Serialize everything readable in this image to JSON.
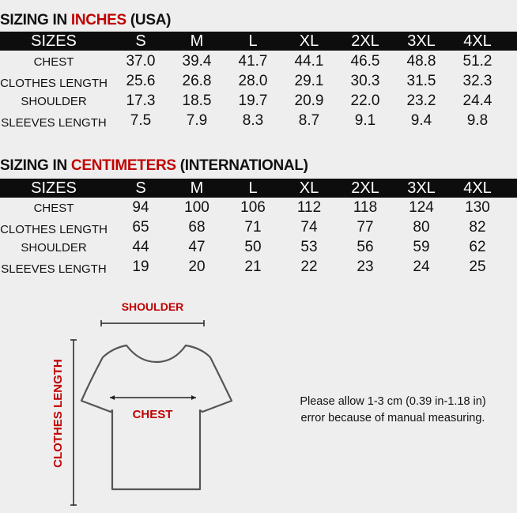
{
  "sizes": [
    "S",
    "M",
    "L",
    "XL",
    "2XL",
    "3XL",
    "4XL"
  ],
  "inches": {
    "title_prefix": "SIZING IN ",
    "title_highlight": "INCHES",
    "title_suffix": " (USA)",
    "header_label": "SIZES",
    "rows": [
      {
        "label": "CHEST",
        "values": [
          "37.0",
          "39.4",
          "41.7",
          "44.1",
          "46.5",
          "48.8",
          "51.2"
        ]
      },
      {
        "label": "CLOTHES LENGTH",
        "values": [
          "25.6",
          "26.8",
          "28.0",
          "29.1",
          "30.3",
          "31.5",
          "32.3"
        ]
      },
      {
        "label": "SHOULDER",
        "values": [
          "17.3",
          "18.5",
          "19.7",
          "20.9",
          "22.0",
          "23.2",
          "24.4"
        ]
      },
      {
        "label": "SLEEVES LENGTH",
        "values": [
          "7.5",
          "7.9",
          "8.3",
          "8.7",
          "9.1",
          "9.4",
          "9.8"
        ]
      }
    ]
  },
  "centimeters": {
    "title_prefix": "SIZING IN ",
    "title_highlight": "CENTIMETERS",
    "title_suffix": " (INTERNATIONAL)",
    "header_label": "SIZES",
    "rows": [
      {
        "label": "CHEST",
        "values": [
          "94",
          "100",
          "106",
          "112",
          "118",
          "124",
          "130"
        ]
      },
      {
        "label": "CLOTHES LENGTH",
        "values": [
          "65",
          "68",
          "71",
          "74",
          "77",
          "80",
          "82"
        ]
      },
      {
        "label": "SHOULDER",
        "values": [
          "44",
          "47",
          "50",
          "53",
          "56",
          "59",
          "62"
        ]
      },
      {
        "label": "SLEEVES LENGTH",
        "values": [
          "19",
          "20",
          "21",
          "22",
          "23",
          "24",
          "25"
        ]
      }
    ]
  },
  "diagram": {
    "shoulder_label": "SHOULDER",
    "chest_label": "CHEST",
    "length_label": "CLOTHES LENGTH"
  },
  "note": {
    "line1": "Please allow 1-3 cm (0.39 in-1.18 in)",
    "line2": "error because of manual measuring."
  },
  "colors": {
    "accent": "#c00000",
    "header_bg": "#0d0d0d",
    "background": "#eeeeee"
  }
}
